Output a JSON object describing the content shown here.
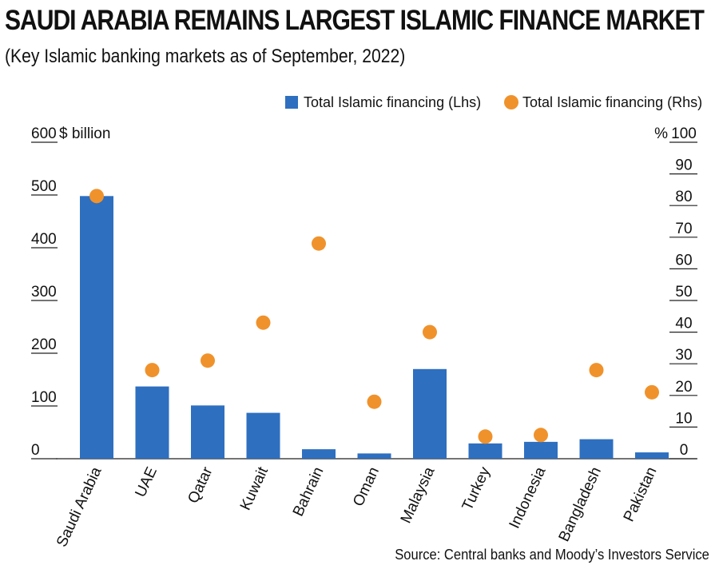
{
  "title": "SAUDI ARABIA REMAINS LARGEST ISLAMIC FINANCE MARKET",
  "subtitle": "(Key Islamic banking markets as of September, 2022)",
  "source": "Source: Central banks and Moody’s Investors Service",
  "chart_data": {
    "type": "bar",
    "categories": [
      "Saudi Arabia",
      "UAE",
      "Qatar",
      "Kuwait",
      "Bahrain",
      "Oman",
      "Malaysia",
      "Turkey",
      "Indonesia",
      "Bangladesh",
      "Pakistan"
    ],
    "series": [
      {
        "name": "Total Islamic financing (Lhs)",
        "type": "bar",
        "axis": "left",
        "color": "#2e6fc0",
        "values": [
          498,
          137,
          101,
          87,
          18,
          10,
          170,
          29,
          32,
          37,
          12
        ]
      },
      {
        "name": "Total Islamic financing (Rhs)",
        "type": "scatter",
        "axis": "right",
        "color": "#f0922b",
        "values": [
          83,
          28,
          31,
          43,
          68,
          18,
          40,
          7,
          7.5,
          28,
          21
        ]
      }
    ],
    "y_left": {
      "unit": "$ billion",
      "ylim": [
        0,
        600
      ],
      "ticks": [
        "0",
        "100",
        "200",
        "300",
        "400",
        "500",
        "600"
      ]
    },
    "y_right": {
      "unit": "%",
      "ylim": [
        0,
        100
      ],
      "ticks": [
        "0",
        "10",
        "20",
        "30",
        "40",
        "50",
        "60",
        "70",
        "80",
        "90",
        "100"
      ]
    },
    "legend_position": "top-right",
    "grid": false
  }
}
